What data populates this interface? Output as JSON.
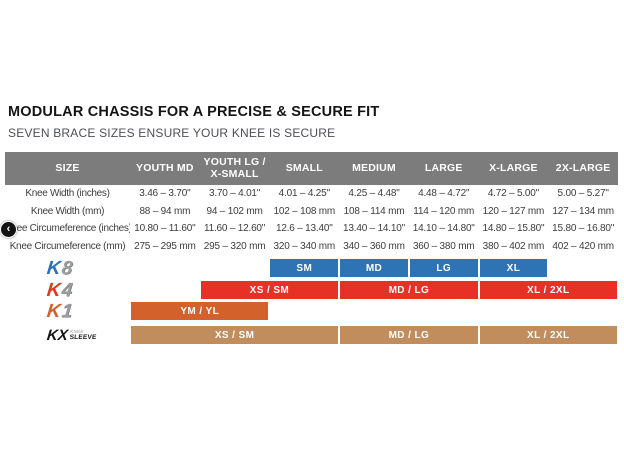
{
  "page": {
    "title": "MODULAR CHASSIS FOR A PRECISE & SECURE FIT",
    "subtitle": "SEVEN BRACE SIZES ENSURE YOUR KNEE IS SECURE"
  },
  "colors": {
    "header_bg": "#7c7c7c",
    "k8_blue": "#2e73b4",
    "k4_red": "#e73127",
    "k1_orange": "#d2612b",
    "kx_tan": "#c18d5c",
    "logo_silver": "#9b9da0",
    "logo_k8_k": "#2d72b8",
    "logo_k4_k": "#e0391f",
    "logo_k1_k": "#d4612c",
    "logo_kx": "#151515"
  },
  "table": {
    "columns": [
      "SIZE",
      "YOUTH MD",
      "YOUTH LG / X-SMALL",
      "SMALL",
      "MEDIUM",
      "LARGE",
      "X-LARGE",
      "2X-LARGE"
    ],
    "rows": [
      {
        "label": "Knee Width (inches)",
        "values": [
          "3.46 – 3.70\"",
          "3.70 – 4.01\"",
          "4.01 – 4.25\"",
          "4.25 – 4.48\"",
          "4.48 – 4.72\"",
          "4.72 – 5.00\"",
          "5.00 – 5.27\""
        ]
      },
      {
        "label": "Knee Width (mm)",
        "values": [
          "88 – 94 mm",
          "94 – 102 mm",
          "102 – 108 mm",
          "108 – 114 mm",
          "114 – 120 mm",
          "120 – 127 mm",
          "127 – 134 mm"
        ]
      },
      {
        "label": "Knee Circumeference (inches)",
        "values": [
          "10.80 – 11.60\"",
          "11.60 – 12.60\"",
          "12.6 – 13.40\"",
          "13.40 – 14.10\"",
          "14.10 – 14.80\"",
          "14.80 – 15.80\"",
          "15.80 – 16.80\""
        ]
      },
      {
        "label": "Knee Circumeference (mm)",
        "values": [
          "275 – 295 mm",
          "295 – 320 mm",
          "320 – 340 mm",
          "340 – 360 mm",
          "360 – 380 mm",
          "380 – 402 mm",
          "402 – 420 mm"
        ]
      }
    ]
  },
  "braces": [
    {
      "name": "K8",
      "logo": {
        "prefix": "K",
        "suffix": "8",
        "prefix_color": "#2d72b8",
        "suffix_color": "#9b9da0"
      },
      "bar_color": "#2e73b4",
      "bars": [
        {
          "label": "SM",
          "start": 3,
          "span": 1
        },
        {
          "label": "MD",
          "start": 4,
          "span": 1
        },
        {
          "label": "LG",
          "start": 5,
          "span": 1
        },
        {
          "label": "XL",
          "start": 6,
          "span": 1
        }
      ]
    },
    {
      "name": "K4",
      "logo": {
        "prefix": "K",
        "suffix": "4",
        "prefix_color": "#e0391f",
        "suffix_color": "#9b9da0"
      },
      "bar_color": "#e73127",
      "bars": [
        {
          "label": "XS / SM",
          "start": 2,
          "span": 2
        },
        {
          "label": "MD / LG",
          "start": 4,
          "span": 2
        },
        {
          "label": "XL / 2XL",
          "start": 6,
          "span": 2
        }
      ]
    },
    {
      "name": "K1",
      "logo": {
        "prefix": "K",
        "suffix": "1",
        "prefix_color": "#d4612c",
        "suffix_color": "#9b9da0"
      },
      "bar_color": "#d2612b",
      "bars": [
        {
          "label": "YM / YL",
          "start": 1,
          "span": 2
        }
      ]
    },
    {
      "name": "KX",
      "logo": {
        "prefix": "KX",
        "sub_top": "KNEE",
        "sub_bottom": "SLEEVE",
        "prefix_color": "#151515"
      },
      "bar_color": "#c18d5c",
      "bars": [
        {
          "label": "XS / SM",
          "start": 1,
          "span": 3
        },
        {
          "label": "MD / LG",
          "start": 4,
          "span": 2
        },
        {
          "label": "XL / 2XL",
          "start": 6,
          "span": 2
        }
      ]
    }
  ],
  "nav": {
    "prev_icon": "‹"
  }
}
